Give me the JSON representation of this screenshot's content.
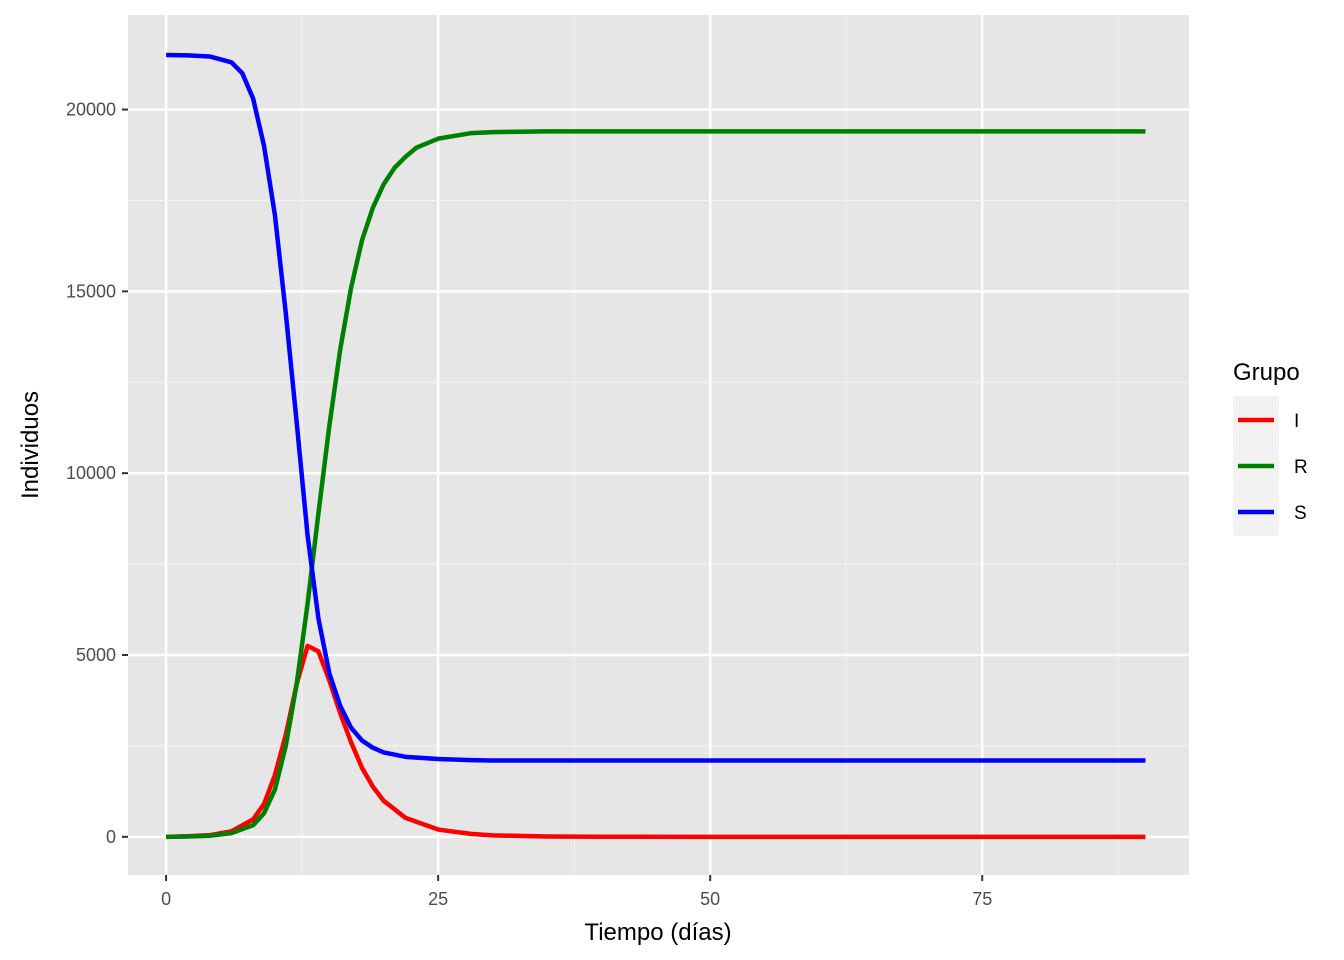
{
  "chart_data": {
    "type": "line",
    "xlabel": "Tiempo (días)",
    "ylabel": "Individuos",
    "xlim": [
      -3.5,
      94
    ],
    "ylim": [
      -1050,
      22600
    ],
    "x_major_ticks": [
      0,
      25,
      50,
      75
    ],
    "x_minor_ticks": [
      12.5,
      37.5,
      62.5,
      87.5
    ],
    "y_major_ticks": [
      0,
      5000,
      10000,
      15000,
      20000
    ],
    "y_minor_ticks": [
      2500,
      7500,
      12500,
      17500
    ],
    "grid": true,
    "legend": {
      "title": "Grupo",
      "position": "right"
    },
    "background": "#e6e6e6",
    "series": [
      {
        "name": "I",
        "color": "#ff0000",
        "points": [
          [
            0,
            0
          ],
          [
            2,
            15
          ],
          [
            4,
            45
          ],
          [
            6,
            150
          ],
          [
            8,
            480
          ],
          [
            9,
            900
          ],
          [
            10,
            1700
          ],
          [
            11,
            2800
          ],
          [
            12,
            4200
          ],
          [
            13,
            5250
          ],
          [
            14,
            5100
          ],
          [
            15,
            4300
          ],
          [
            16,
            3400
          ],
          [
            17,
            2600
          ],
          [
            18,
            1900
          ],
          [
            19,
            1380
          ],
          [
            20,
            990
          ],
          [
            22,
            520
          ],
          [
            25,
            200
          ],
          [
            28,
            80
          ],
          [
            30,
            40
          ],
          [
            35,
            10
          ],
          [
            40,
            3
          ],
          [
            50,
            0
          ],
          [
            60,
            0
          ],
          [
            70,
            0
          ],
          [
            80,
            0
          ],
          [
            90,
            0
          ]
        ]
      },
      {
        "name": "R",
        "color": "#008000",
        "points": [
          [
            0,
            0
          ],
          [
            2,
            10
          ],
          [
            4,
            30
          ],
          [
            6,
            100
          ],
          [
            8,
            320
          ],
          [
            9,
            650
          ],
          [
            10,
            1300
          ],
          [
            11,
            2500
          ],
          [
            12,
            4200
          ],
          [
            13,
            6400
          ],
          [
            14,
            8900
          ],
          [
            15,
            11300
          ],
          [
            16,
            13400
          ],
          [
            17,
            15100
          ],
          [
            18,
            16400
          ],
          [
            19,
            17300
          ],
          [
            20,
            17950
          ],
          [
            21,
            18400
          ],
          [
            22,
            18700
          ],
          [
            23,
            18950
          ],
          [
            25,
            19200
          ],
          [
            28,
            19350
          ],
          [
            30,
            19380
          ],
          [
            35,
            19400
          ],
          [
            40,
            19400
          ],
          [
            50,
            19400
          ],
          [
            60,
            19400
          ],
          [
            70,
            19400
          ],
          [
            80,
            19400
          ],
          [
            90,
            19400
          ]
        ]
      },
      {
        "name": "S",
        "color": "#0000ff",
        "points": [
          [
            0,
            21500
          ],
          [
            2,
            21490
          ],
          [
            4,
            21460
          ],
          [
            6,
            21300
          ],
          [
            7,
            21000
          ],
          [
            8,
            20300
          ],
          [
            9,
            19000
          ],
          [
            10,
            17100
          ],
          [
            11,
            14400
          ],
          [
            12,
            11400
          ],
          [
            13,
            8300
          ],
          [
            14,
            6000
          ],
          [
            15,
            4500
          ],
          [
            16,
            3600
          ],
          [
            17,
            3000
          ],
          [
            18,
            2650
          ],
          [
            19,
            2450
          ],
          [
            20,
            2320
          ],
          [
            22,
            2200
          ],
          [
            25,
            2140
          ],
          [
            28,
            2110
          ],
          [
            30,
            2100
          ],
          [
            40,
            2100
          ],
          [
            50,
            2100
          ],
          [
            60,
            2100
          ],
          [
            70,
            2100
          ],
          [
            80,
            2100
          ],
          [
            90,
            2100
          ]
        ]
      }
    ]
  }
}
